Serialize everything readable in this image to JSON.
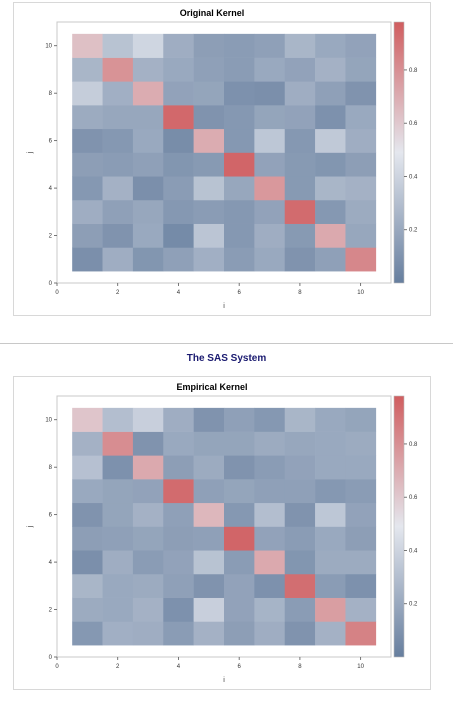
{
  "system_title": "The SAS System",
  "chart_data": [
    {
      "type": "heatmap",
      "title": "Original Kernel",
      "xlabel": "i",
      "ylabel": "j",
      "xlim": [
        0,
        11
      ],
      "ylim": [
        0,
        11
      ],
      "xticks": [
        "0",
        "2",
        "4",
        "6",
        "8",
        "10"
      ],
      "yticks": [
        "0",
        "2",
        "4",
        "6",
        "8",
        "10"
      ],
      "x": [
        1,
        2,
        3,
        4,
        5,
        6,
        7,
        8,
        9,
        10
      ],
      "y": [
        1,
        2,
        3,
        4,
        5,
        6,
        7,
        8,
        9,
        10
      ],
      "colorbar": {
        "range": [
          0,
          0.98
        ],
        "ticks": [
          "0.2",
          "0.4",
          "0.6",
          "0.8"
        ],
        "colors": [
          "#667e9e",
          "#e4e7ee",
          "#d05d5f"
        ]
      },
      "values": [
        [
          0.08,
          0.22,
          0.11,
          0.16,
          0.23,
          0.14,
          0.2,
          0.1,
          0.16,
          0.83
        ],
        [
          0.15,
          0.1,
          0.2,
          0.06,
          0.33,
          0.12,
          0.22,
          0.13,
          0.71,
          0.19
        ],
        [
          0.22,
          0.16,
          0.19,
          0.12,
          0.14,
          0.12,
          0.17,
          0.93,
          0.12,
          0.21
        ],
        [
          0.12,
          0.24,
          0.08,
          0.14,
          0.32,
          0.19,
          0.77,
          0.13,
          0.26,
          0.24
        ],
        [
          0.15,
          0.14,
          0.16,
          0.11,
          0.13,
          0.95,
          0.17,
          0.13,
          0.11,
          0.15
        ],
        [
          0.1,
          0.12,
          0.2,
          0.07,
          0.7,
          0.12,
          0.34,
          0.12,
          0.35,
          0.22
        ],
        [
          0.21,
          0.19,
          0.19,
          0.94,
          0.1,
          0.12,
          0.18,
          0.17,
          0.09,
          0.2
        ],
        [
          0.37,
          0.23,
          0.7,
          0.17,
          0.18,
          0.09,
          0.08,
          0.22,
          0.16,
          0.1
        ],
        [
          0.26,
          0.79,
          0.24,
          0.2,
          0.16,
          0.14,
          0.2,
          0.17,
          0.24,
          0.18
        ],
        [
          0.63,
          0.32,
          0.41,
          0.22,
          0.15,
          0.14,
          0.16,
          0.26,
          0.2,
          0.17
        ]
      ]
    },
    {
      "type": "heatmap",
      "title": "Empirical Kernel",
      "xlabel": "i",
      "ylabel": "j",
      "xlim": [
        0,
        11
      ],
      "ylim": [
        0,
        11
      ],
      "xticks": [
        "0",
        "2",
        "4",
        "6",
        "8",
        "10"
      ],
      "yticks": [
        "0",
        "2",
        "4",
        "6",
        "8",
        "10"
      ],
      "x": [
        1,
        2,
        3,
        4,
        5,
        6,
        7,
        8,
        9,
        10
      ],
      "y": [
        1,
        2,
        3,
        4,
        5,
        6,
        7,
        8,
        9,
        10
      ],
      "colorbar": {
        "range": [
          0,
          0.98
        ],
        "ticks": [
          "0.2",
          "0.4",
          "0.6",
          "0.8"
        ],
        "colors": [
          "#667e9e",
          "#e4e7ee",
          "#d05d5f"
        ]
      },
      "values": [
        [
          0.12,
          0.23,
          0.22,
          0.14,
          0.24,
          0.15,
          0.22,
          0.1,
          0.24,
          0.85
        ],
        [
          0.21,
          0.2,
          0.24,
          0.09,
          0.38,
          0.17,
          0.25,
          0.14,
          0.75,
          0.24
        ],
        [
          0.26,
          0.2,
          0.21,
          0.16,
          0.1,
          0.17,
          0.09,
          0.92,
          0.14,
          0.09
        ],
        [
          0.08,
          0.22,
          0.14,
          0.17,
          0.32,
          0.14,
          0.71,
          0.11,
          0.21,
          0.21
        ],
        [
          0.15,
          0.16,
          0.18,
          0.15,
          0.16,
          0.95,
          0.17,
          0.14,
          0.2,
          0.15
        ],
        [
          0.1,
          0.18,
          0.24,
          0.16,
          0.66,
          0.12,
          0.3,
          0.1,
          0.34,
          0.17
        ],
        [
          0.2,
          0.18,
          0.17,
          0.93,
          0.16,
          0.18,
          0.16,
          0.16,
          0.12,
          0.14
        ],
        [
          0.31,
          0.09,
          0.71,
          0.15,
          0.21,
          0.1,
          0.14,
          0.17,
          0.2,
          0.2
        ],
        [
          0.24,
          0.81,
          0.1,
          0.2,
          0.18,
          0.18,
          0.21,
          0.19,
          0.2,
          0.21
        ],
        [
          0.61,
          0.3,
          0.38,
          0.22,
          0.1,
          0.16,
          0.12,
          0.26,
          0.2,
          0.18
        ]
      ]
    }
  ]
}
